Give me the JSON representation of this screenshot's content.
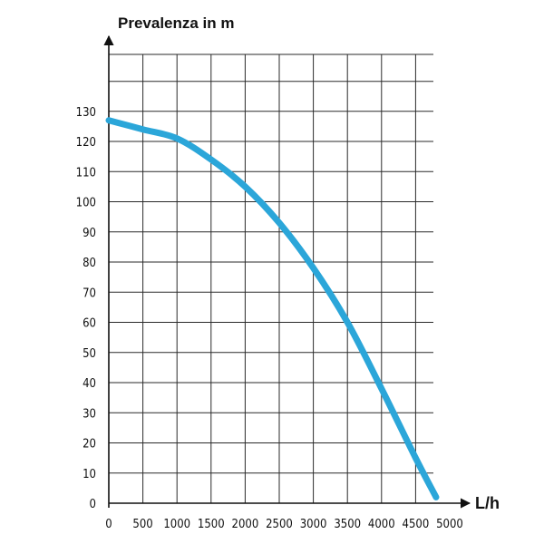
{
  "chart_data": {
    "type": "line",
    "title": "",
    "ylabel": "Prevalenza in m",
    "xlabel": "L/h",
    "xlim": [
      0,
      5000
    ],
    "ylim": [
      0,
      140
    ],
    "grid": true,
    "x_ticks": [
      0,
      500,
      1000,
      1500,
      2000,
      2500,
      3000,
      3500,
      4000,
      4500,
      5000
    ],
    "y_ticks": [
      0,
      10,
      20,
      30,
      40,
      50,
      60,
      70,
      80,
      90,
      100,
      110,
      120,
      130
    ],
    "line_color": "#2ba6d9",
    "series": [
      {
        "x": [
          0,
          500,
          1000,
          1500,
          2000,
          2500,
          3000,
          3500,
          4000,
          4500,
          4800
        ],
        "values": [
          127,
          124,
          121,
          114,
          105,
          93,
          78,
          60,
          38,
          15,
          2
        ]
      }
    ]
  }
}
